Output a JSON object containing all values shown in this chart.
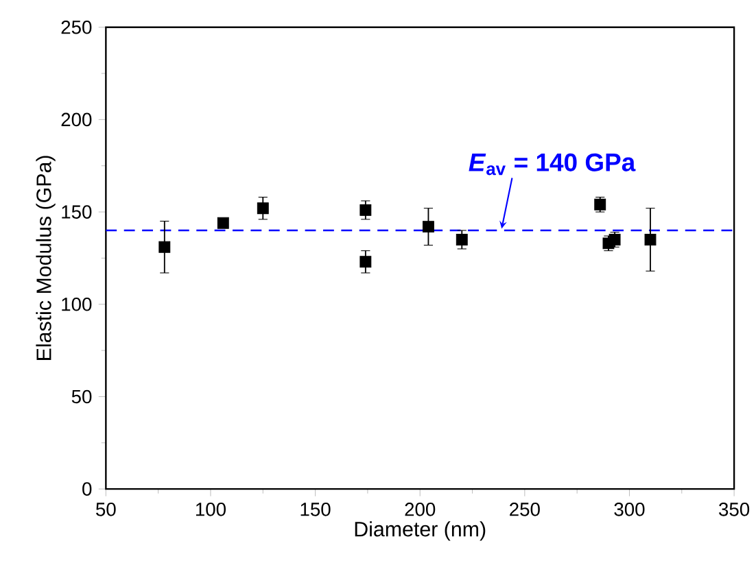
{
  "chart_data": {
    "type": "scatter",
    "xlabel": "Diameter (nm)",
    "ylabel": "Elastic Modulus (GPa)",
    "x": [
      78,
      106,
      125,
      174,
      174,
      204,
      220,
      286,
      290,
      293,
      310
    ],
    "values": [
      131,
      144,
      152,
      151,
      123,
      142,
      135,
      154,
      133,
      135,
      135
    ],
    "errors": [
      14,
      2,
      6,
      5,
      6,
      10,
      5,
      4,
      4,
      4,
      17
    ],
    "color": "#000000",
    "marker": "square",
    "xlim": [
      50,
      350
    ],
    "xticks": [
      50,
      100,
      150,
      200,
      250,
      300,
      350
    ],
    "ylim": [
      0,
      250
    ],
    "yticks": [
      0,
      50,
      100,
      150,
      200,
      250
    ],
    "ref_lines": [
      {
        "axis": "y",
        "value": 140,
        "label": "*E*$_{av}$ = 140 GPa",
        "color": "#0000ff",
        "line_style": "dashed"
      }
    ],
    "grid": false
  }
}
